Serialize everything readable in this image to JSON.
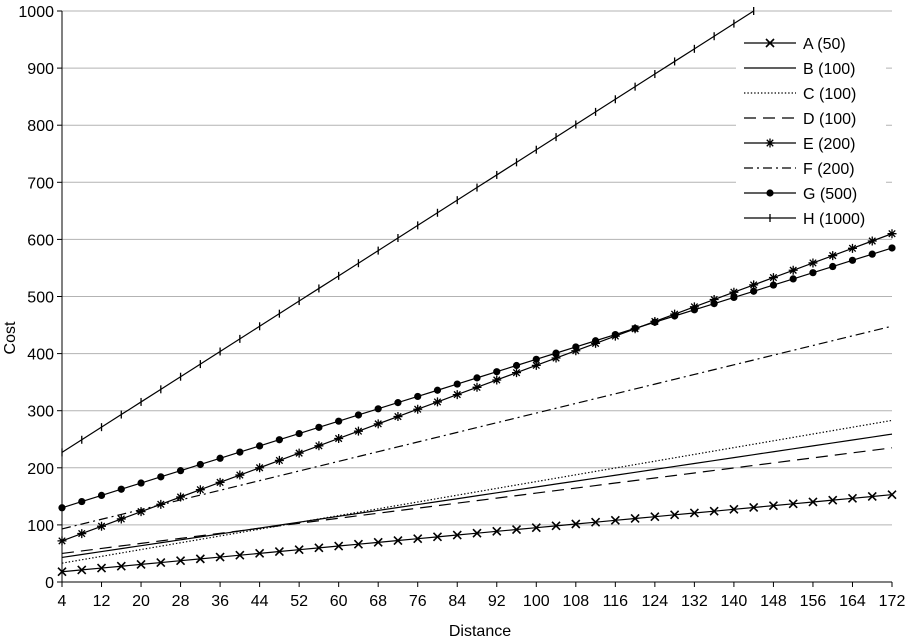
{
  "chart_data": {
    "type": "line",
    "title": "",
    "xlabel": "Distance",
    "ylabel": "Cost",
    "xlim": [
      4,
      172
    ],
    "ylim": [
      0,
      1000
    ],
    "x_ticks": [
      4,
      12,
      20,
      28,
      36,
      44,
      52,
      60,
      68,
      76,
      84,
      92,
      100,
      108,
      116,
      124,
      132,
      140,
      148,
      156,
      164,
      172
    ],
    "y_ticks": [
      0,
      100,
      200,
      300,
      400,
      500,
      600,
      700,
      800,
      900,
      1000
    ],
    "grid": "horizontal",
    "legend_position": "top-right",
    "series": [
      {
        "name": "A (50)",
        "marker": "x",
        "dash": "solid",
        "x_start": 4,
        "x_step": 4,
        "x_end": 172,
        "y_start": 18,
        "y_end": 153
      },
      {
        "name": "B (100)",
        "marker": "none",
        "dash": "solid",
        "x_start": 4,
        "x_step": 4,
        "x_end": 172,
        "y_start": 43,
        "y_end": 259
      },
      {
        "name": "C (100)",
        "marker": "none",
        "dash": "dotted",
        "x_start": 4,
        "x_step": 4,
        "x_end": 172,
        "y_start": 33,
        "y_end": 283
      },
      {
        "name": "D (100)",
        "marker": "none",
        "dash": "dashed",
        "x_start": 4,
        "x_step": 4,
        "x_end": 172,
        "y_start": 50,
        "y_end": 235
      },
      {
        "name": "E (200)",
        "marker": "asterisk",
        "dash": "solid",
        "x_start": 4,
        "x_step": 4,
        "x_end": 172,
        "y_start": 72,
        "y_end": 610
      },
      {
        "name": "F (200)",
        "marker": "none",
        "dash": "dashdot",
        "x_start": 4,
        "x_step": 4,
        "x_end": 172,
        "y_start": 93,
        "y_end": 448
      },
      {
        "name": "G (500)",
        "marker": "circle",
        "dash": "solid",
        "x_start": 4,
        "x_step": 4,
        "x_end": 172,
        "y_start": 130,
        "y_end": 585
      },
      {
        "name": "H (1000)",
        "marker": "bar",
        "dash": "solid",
        "x_start": 4,
        "x_step": 4,
        "x_end": 144,
        "y_start": 227,
        "y_end": 1000
      }
    ]
  }
}
